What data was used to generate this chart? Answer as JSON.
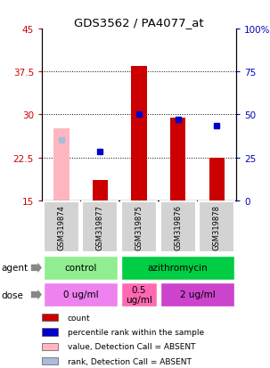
{
  "title": "GDS3562 / PA4077_at",
  "samples": [
    "GSM319874",
    "GSM319877",
    "GSM319875",
    "GSM319876",
    "GSM319878"
  ],
  "left_ylim": [
    15,
    45
  ],
  "left_yticks": [
    15,
    22.5,
    30,
    37.5,
    45
  ],
  "right_ylim": [
    0,
    100
  ],
  "right_yticks": [
    0,
    25,
    50,
    75,
    100
  ],
  "red_bars": [
    null,
    18.5,
    38.5,
    29.5,
    22.5
  ],
  "pink_bars": [
    27.5,
    null,
    null,
    null,
    null
  ],
  "blue_squares": [
    null,
    23.5,
    30.0,
    29.2,
    28.0
  ],
  "light_blue_squares": [
    25.5,
    null,
    null,
    null,
    null
  ],
  "agent_groups": [
    {
      "label": "control",
      "cols": [
        0,
        1
      ],
      "color": "#90EE90"
    },
    {
      "label": "azithromycin",
      "cols": [
        2,
        3,
        4
      ],
      "color": "#00CC44"
    }
  ],
  "dose_groups": [
    {
      "label": "0 ug/ml",
      "cols": [
        0,
        1
      ],
      "color": "#EE82EE"
    },
    {
      "label": "0.5\nug/ml",
      "cols": [
        2
      ],
      "color": "#FF69B4"
    },
    {
      "label": "2 ug/ml",
      "cols": [
        3,
        4
      ],
      "color": "#CC44CC"
    }
  ],
  "legend_items": [
    {
      "color": "#CC0000",
      "label": "count"
    },
    {
      "color": "#0000CC",
      "label": "percentile rank within the sample"
    },
    {
      "color": "#FFB6C1",
      "label": "value, Detection Call = ABSENT"
    },
    {
      "color": "#AABBDD",
      "label": "rank, Detection Call = ABSENT"
    }
  ],
  "bar_width": 0.4,
  "left_tick_color": "#CC0000",
  "right_tick_color": "#0000BB",
  "bar_bottom": 15
}
